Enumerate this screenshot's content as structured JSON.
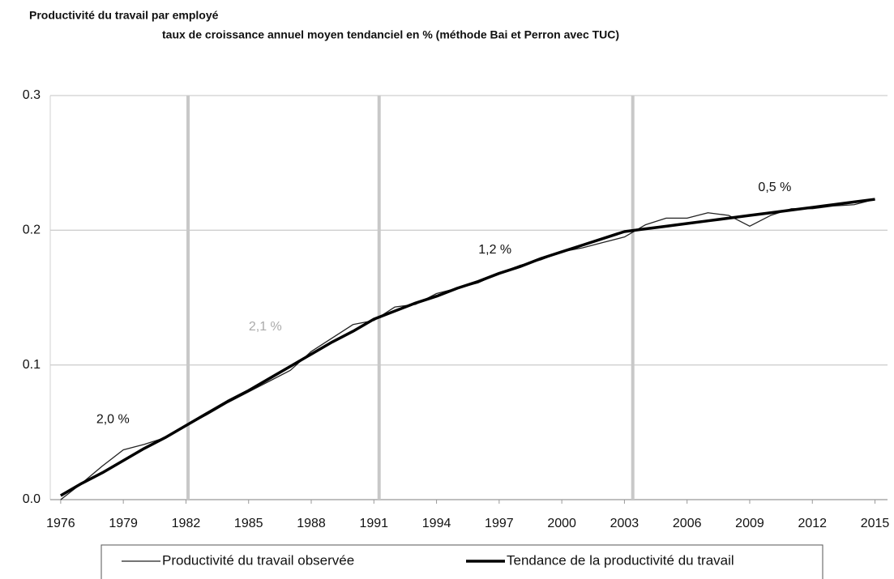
{
  "chart_data": {
    "type": "line",
    "title": "Productivité du travail par employé",
    "subtitle": "taux de croissance annuel moyen tendanciel en % (méthode Bai et Perron avec TUC)",
    "x": [
      1976,
      1977,
      1978,
      1979,
      1980,
      1981,
      1982,
      1983,
      1984,
      1985,
      1986,
      1987,
      1988,
      1989,
      1990,
      1991,
      1992,
      1993,
      1994,
      1995,
      1996,
      1997,
      1998,
      1999,
      2000,
      2001,
      2002,
      2003,
      2004,
      2005,
      2006,
      2007,
      2008,
      2009,
      2010,
      2011,
      2012,
      2013,
      2014,
      2015
    ],
    "series": [
      {
        "name": "Productivité du travail observée",
        "color": "#222222",
        "width": 1.3,
        "values": [
          0.0,
          0.012,
          0.025,
          0.037,
          0.041,
          0.046,
          0.055,
          0.063,
          0.072,
          0.08,
          0.088,
          0.096,
          0.11,
          0.12,
          0.13,
          0.133,
          0.143,
          0.145,
          0.153,
          0.157,
          0.161,
          0.168,
          0.174,
          0.178,
          0.184,
          0.187,
          0.191,
          0.195,
          0.204,
          0.209,
          0.209,
          0.213,
          0.211,
          0.203,
          0.211,
          0.216,
          0.216,
          0.218,
          0.219,
          0.223
        ]
      },
      {
        "name": "Tendance de la productivité du travail",
        "color": "#000000",
        "width": 3.5,
        "values": [
          0.003,
          0.012,
          0.02,
          0.029,
          0.038,
          0.046,
          0.055,
          0.064,
          0.073,
          0.081,
          0.09,
          0.099,
          0.108,
          0.117,
          0.125,
          0.134,
          0.14,
          0.146,
          0.151,
          0.157,
          0.162,
          0.168,
          0.173,
          0.179,
          0.184,
          0.189,
          0.194,
          0.199,
          0.201,
          0.203,
          0.205,
          0.207,
          0.209,
          0.211,
          0.213,
          0.215,
          0.217,
          0.219,
          0.221,
          0.223
        ]
      }
    ],
    "breaks": [
      1982.1,
      1991.25,
      2003.4
    ],
    "annotations": [
      {
        "text": "2,0 %",
        "x": 1978.5,
        "y": 0.0595,
        "color": "#111111"
      },
      {
        "text": "2,1 %",
        "x": 1985.8,
        "y": 0.1283,
        "color": "#aaaaaa"
      },
      {
        "text": "1,2 %",
        "x": 1996.8,
        "y": 0.1854,
        "color": "#111111"
      },
      {
        "text": "0,5 %",
        "x": 2010.2,
        "y": 0.2315,
        "color": "#111111"
      }
    ],
    "xlim": [
      1975.5,
      2015.6
    ],
    "xticks": [
      1976,
      1979,
      1982,
      1985,
      1988,
      1991,
      1994,
      1997,
      2000,
      2003,
      2006,
      2009,
      2012,
      2015
    ],
    "ylim": [
      0,
      0.3
    ],
    "yticks": [
      {
        "value": 0,
        "label": "0.0"
      },
      0.1,
      0.2,
      0.3
    ],
    "grid": true
  }
}
